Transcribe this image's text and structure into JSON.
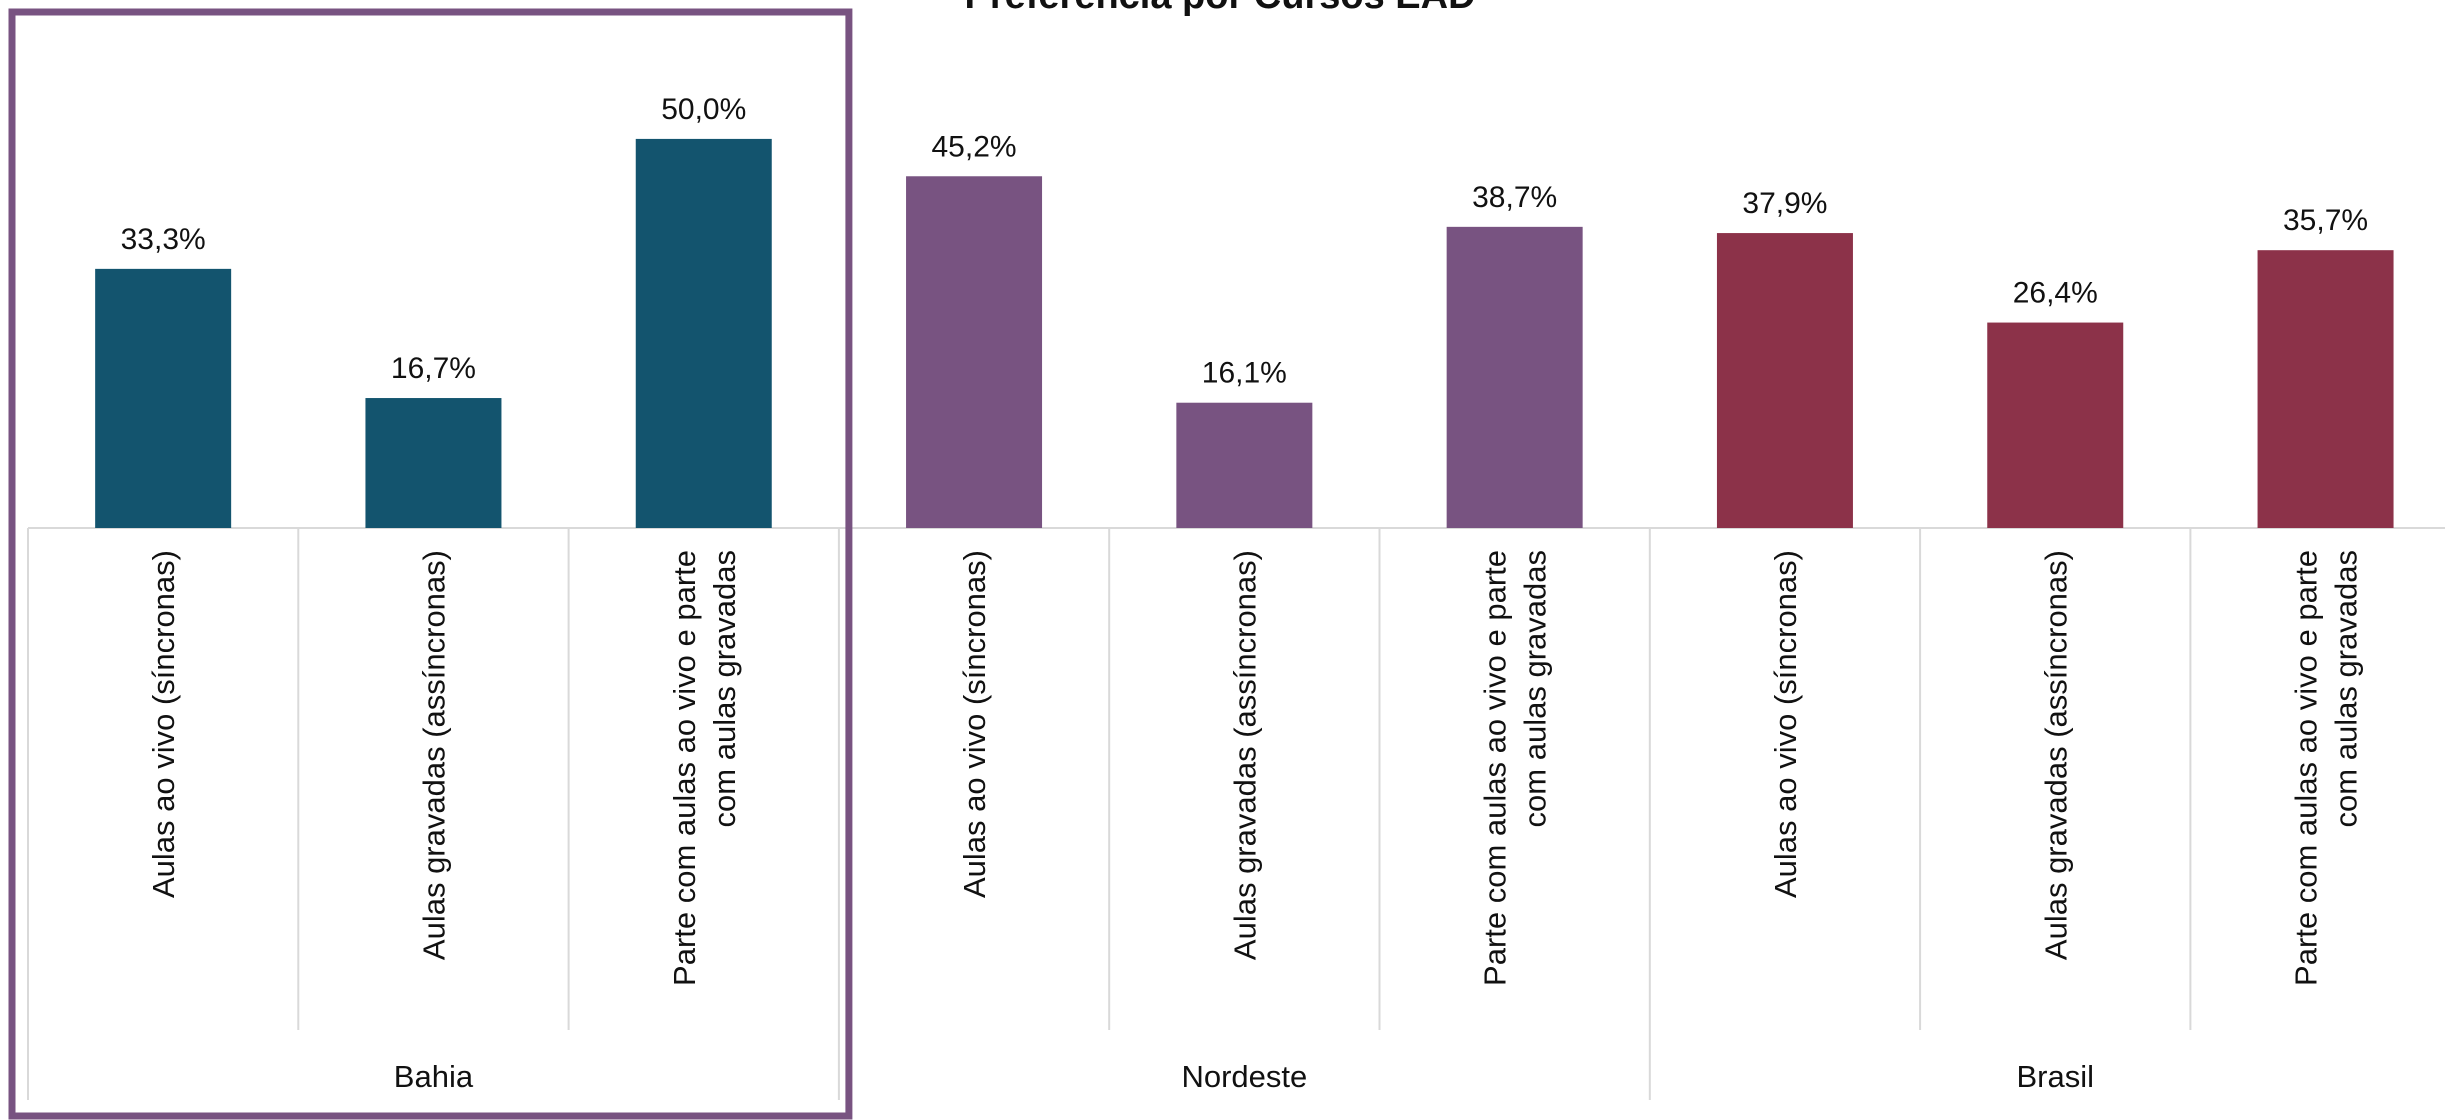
{
  "chart_data": {
    "type": "bar",
    "title": "Preferência por Cursos EAD",
    "xlabel": "",
    "ylabel": "",
    "ylim": [
      0,
      55
    ],
    "grid": false,
    "legend": "none",
    "highlight_group": "Bahia",
    "groups": [
      {
        "name": "Bahia",
        "color": "#13546E",
        "categories": [
          "Aulas ao vivo (síncronas)",
          "Aulas gravadas (assíncronas)",
          "Parte com aulas ao vivo e parte com aulas gravadas"
        ],
        "values": [
          33.3,
          16.7,
          50.0
        ],
        "labels": [
          "33,3%",
          "16,7%",
          "50,0%"
        ]
      },
      {
        "name": "Nordeste",
        "color": "#785381",
        "categories": [
          "Aulas ao vivo (síncronas)",
          "Aulas gravadas (assíncronas)",
          "Parte com aulas ao vivo e parte com aulas gravadas"
        ],
        "values": [
          45.2,
          16.1,
          38.7
        ],
        "labels": [
          "45,2%",
          "16,1%",
          "38,7%"
        ]
      },
      {
        "name": "Brasil",
        "color": "#8C3249",
        "categories": [
          "Aulas ao vivo (síncronas)",
          "Aulas gravadas (assíncronas)",
          "Parte com aulas ao vivo e parte com aulas gravadas"
        ],
        "values": [
          37.9,
          26.4,
          35.7
        ],
        "labels": [
          "37,9%",
          "26,4%",
          "35,7%"
        ]
      }
    ],
    "category_lines": {
      "Aulas ao vivo (síncronas)": [
        "Aulas ao vivo (síncronas)"
      ],
      "Aulas gravadas (assíncronas)": [
        "Aulas gravadas (assíncronas)"
      ],
      "Parte com aulas ao vivo e parte com aulas gravadas": [
        "Parte com aulas ao vivo e parte",
        "com aulas gravadas"
      ]
    },
    "colors": {
      "axis": "#D9D9D9",
      "highlight_box": "#785381"
    }
  }
}
